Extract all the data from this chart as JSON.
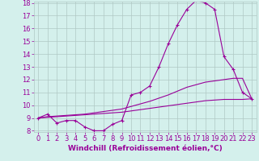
{
  "title": "",
  "xlabel": "Windchill (Refroidissement éolien,°C)",
  "ylabel": "",
  "background_color": "#d4f0ec",
  "line_color": "#990099",
  "grid_color": "#b0c8c4",
  "x_values": [
    0,
    1,
    2,
    3,
    4,
    5,
    6,
    7,
    8,
    9,
    10,
    11,
    12,
    13,
    14,
    15,
    16,
    17,
    18,
    19,
    20,
    21,
    22,
    23
  ],
  "series1": [
    9.0,
    9.3,
    8.6,
    8.8,
    8.8,
    8.3,
    8.0,
    8.0,
    8.5,
    8.8,
    10.8,
    11.0,
    11.5,
    13.0,
    14.8,
    16.3,
    17.5,
    18.2,
    18.0,
    17.5,
    13.8,
    12.8,
    11.0,
    10.5
  ],
  "series2": [
    9.0,
    9.05,
    9.1,
    9.15,
    9.2,
    9.25,
    9.3,
    9.35,
    9.4,
    9.45,
    9.55,
    9.65,
    9.75,
    9.85,
    9.95,
    10.05,
    10.15,
    10.25,
    10.35,
    10.4,
    10.45,
    10.45,
    10.45,
    10.5
  ],
  "series3": [
    9.0,
    9.1,
    9.15,
    9.2,
    9.25,
    9.3,
    9.4,
    9.5,
    9.6,
    9.7,
    9.9,
    10.1,
    10.3,
    10.55,
    10.8,
    11.1,
    11.4,
    11.6,
    11.8,
    11.9,
    12.0,
    12.1,
    12.1,
    10.5
  ],
  "ylim": [
    8,
    18
  ],
  "xlim": [
    -0.5,
    23.5
  ],
  "yticks": [
    8,
    9,
    10,
    11,
    12,
    13,
    14,
    15,
    16,
    17,
    18
  ],
  "xticks": [
    0,
    1,
    2,
    3,
    4,
    5,
    6,
    7,
    8,
    9,
    10,
    11,
    12,
    13,
    14,
    15,
    16,
    17,
    18,
    19,
    20,
    21,
    22,
    23
  ],
  "fontsize_ticks": 6,
  "fontsize_label": 6.5,
  "lw": 0.8
}
